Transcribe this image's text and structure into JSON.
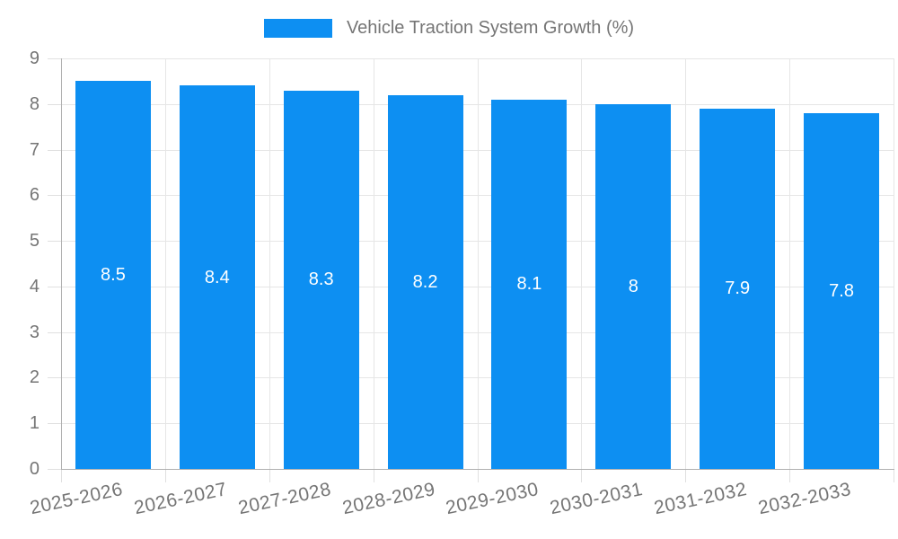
{
  "legend": {
    "label": "Vehicle Traction System Growth (%)"
  },
  "chart_data": {
    "type": "bar",
    "title": "Vehicle Traction System Growth (%)",
    "categories": [
      "2025-2026",
      "2026-2027",
      "2027-2028",
      "2028-2029",
      "2029-2030",
      "2030-2031",
      "2031-2032",
      "2032-2033"
    ],
    "values": [
      8.5,
      8.4,
      8.3,
      8.2,
      8.1,
      8,
      7.9,
      7.8
    ],
    "bar_labels": [
      "8.5",
      "8.4",
      "8.3",
      "8.2",
      "8.1",
      "8",
      "7.9",
      "7.8"
    ],
    "xlabel": "",
    "ylabel": "",
    "ylim": [
      0,
      9
    ],
    "y_ticks": [
      "0",
      "1",
      "2",
      "3",
      "4",
      "5",
      "6",
      "7",
      "8",
      "9"
    ],
    "grid": true,
    "legend_position": "top-center",
    "colors": {
      "bar": "#0d8ff2",
      "bar_value_text": "#ffffff",
      "axis_text": "#757575",
      "legend_text": "#757575",
      "gridline": "#e6e6e6",
      "tick": "#e0e0e0",
      "axis_line": "#b0b0b0",
      "background": "#ffffff"
    }
  }
}
